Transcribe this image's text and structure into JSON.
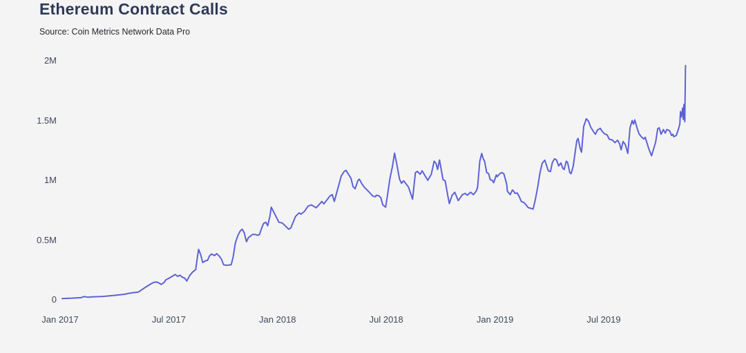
{
  "chart": {
    "title": "Ethereum Contract Calls",
    "source": "Source: Coin Metrics Network Data Pro"
  },
  "colors": {
    "background": "#f4f4f5",
    "line": "#5c61d6",
    "title_text": "#2e3a55",
    "tick_text": "#3e4859",
    "source_text": "#26282c"
  },
  "chart_data": {
    "type": "line",
    "title": "Ethereum Contract Calls",
    "subtitle": "Source: Coin Metrics Network Data Pro",
    "grid": false,
    "legend": false,
    "x_axis": {
      "unit": "decimal_year",
      "range": [
        2017.0,
        2019.9
      ],
      "ticks": [
        {
          "label": "Jan 2017",
          "t": 2017.0
        },
        {
          "label": "Jul 2017",
          "t": 2017.5
        },
        {
          "label": "Jan 2018",
          "t": 2018.0
        },
        {
          "label": "Jul 2018",
          "t": 2018.5
        },
        {
          "label": "Jan 2019",
          "t": 2019.0
        },
        {
          "label": "Jul 2019",
          "t": 2019.5
        }
      ]
    },
    "y_axis": {
      "unit": "contract calls (millions)",
      "range": [
        0,
        2
      ],
      "ticks": [
        {
          "label": "0",
          "value": 0
        },
        {
          "label": "0.5M",
          "value": 0.5
        },
        {
          "label": "1M",
          "value": 1
        },
        {
          "label": "1.5M",
          "value": 1.5
        },
        {
          "label": "2M",
          "value": 2
        }
      ]
    },
    "series": [
      {
        "name": "Ethereum contract calls",
        "unit": "millions per day",
        "points": [
          [
            2017.01,
            0.01
          ],
          [
            2017.032,
            0.012
          ],
          [
            2017.054,
            0.014
          ],
          [
            2017.073,
            0.016
          ],
          [
            2017.096,
            0.018
          ],
          [
            2017.111,
            0.027
          ],
          [
            2017.127,
            0.022
          ],
          [
            2017.146,
            0.024
          ],
          [
            2017.169,
            0.026
          ],
          [
            2017.191,
            0.028
          ],
          [
            2017.21,
            0.03
          ],
          [
            2017.232,
            0.034
          ],
          [
            2017.255,
            0.038
          ],
          [
            2017.274,
            0.042
          ],
          [
            2017.296,
            0.046
          ],
          [
            2017.318,
            0.055
          ],
          [
            2017.338,
            0.06
          ],
          [
            2017.36,
            0.065
          ],
          [
            2017.376,
            0.085
          ],
          [
            2017.392,
            0.104
          ],
          [
            2017.404,
            0.118
          ],
          [
            2017.417,
            0.133
          ],
          [
            2017.43,
            0.145
          ],
          [
            2017.443,
            0.149
          ],
          [
            2017.452,
            0.143
          ],
          [
            2017.465,
            0.129
          ],
          [
            2017.478,
            0.145
          ],
          [
            2017.487,
            0.168
          ],
          [
            2017.497,
            0.177
          ],
          [
            2017.51,
            0.19
          ],
          [
            2017.519,
            0.2
          ],
          [
            2017.529,
            0.212
          ],
          [
            2017.541,
            0.196
          ],
          [
            2017.551,
            0.206
          ],
          [
            2017.561,
            0.19
          ],
          [
            2017.573,
            0.181
          ],
          [
            2017.583,
            0.158
          ],
          [
            2017.595,
            0.2
          ],
          [
            2017.608,
            0.23
          ],
          [
            2017.624,
            0.254
          ],
          [
            2017.631,
            0.35
          ],
          [
            2017.637,
            0.422
          ],
          [
            2017.646,
            0.38
          ],
          [
            2017.656,
            0.312
          ],
          [
            2017.666,
            0.324
          ],
          [
            2017.678,
            0.33
          ],
          [
            2017.688,
            0.37
          ],
          [
            2017.697,
            0.383
          ],
          [
            2017.71,
            0.37
          ],
          [
            2017.72,
            0.386
          ],
          [
            2017.732,
            0.366
          ],
          [
            2017.742,
            0.34
          ],
          [
            2017.752,
            0.293
          ],
          [
            2017.764,
            0.289
          ],
          [
            2017.774,
            0.29
          ],
          [
            2017.787,
            0.293
          ],
          [
            2017.796,
            0.36
          ],
          [
            2017.806,
            0.476
          ],
          [
            2017.818,
            0.54
          ],
          [
            2017.828,
            0.575
          ],
          [
            2017.838,
            0.591
          ],
          [
            2017.847,
            0.56
          ],
          [
            2017.857,
            0.486
          ],
          [
            2017.866,
            0.52
          ],
          [
            2017.876,
            0.534
          ],
          [
            2017.885,
            0.547
          ],
          [
            2017.898,
            0.547
          ],
          [
            2017.908,
            0.54
          ],
          [
            2017.917,
            0.547
          ],
          [
            2017.927,
            0.6
          ],
          [
            2017.936,
            0.64
          ],
          [
            2017.946,
            0.649
          ],
          [
            2017.955,
            0.62
          ],
          [
            2017.965,
            0.7
          ],
          [
            2017.971,
            0.775
          ],
          [
            2017.981,
            0.74
          ],
          [
            2017.99,
            0.707
          ],
          [
            2018.006,
            0.649
          ],
          [
            2018.022,
            0.643
          ],
          [
            2018.051,
            0.591
          ],
          [
            2018.061,
            0.601
          ],
          [
            2018.083,
            0.698
          ],
          [
            2018.099,
            0.727
          ],
          [
            2018.108,
            0.717
          ],
          [
            2018.124,
            0.74
          ],
          [
            2018.14,
            0.784
          ],
          [
            2018.156,
            0.794
          ],
          [
            2018.178,
            0.77
          ],
          [
            2018.204,
            0.823
          ],
          [
            2018.213,
            0.803
          ],
          [
            2018.242,
            0.871
          ],
          [
            2018.252,
            0.88
          ],
          [
            2018.261,
            0.823
          ],
          [
            2018.277,
            0.929
          ],
          [
            2018.293,
            1.035
          ],
          [
            2018.306,
            1.073
          ],
          [
            2018.315,
            1.083
          ],
          [
            2018.325,
            1.054
          ],
          [
            2018.338,
            1.016
          ],
          [
            2018.347,
            0.948
          ],
          [
            2018.357,
            0.929
          ],
          [
            2018.369,
            0.996
          ],
          [
            2018.376,
            1.01
          ],
          [
            2018.389,
            0.967
          ],
          [
            2018.401,
            0.938
          ],
          [
            2018.417,
            0.909
          ],
          [
            2018.427,
            0.89
          ],
          [
            2018.436,
            0.871
          ],
          [
            2018.449,
            0.861
          ],
          [
            2018.455,
            0.875
          ],
          [
            2018.465,
            0.871
          ],
          [
            2018.475,
            0.855
          ],
          [
            2018.484,
            0.794
          ],
          [
            2018.497,
            0.775
          ],
          [
            2018.506,
            0.88
          ],
          [
            2018.516,
            1.006
          ],
          [
            2018.529,
            1.121
          ],
          [
            2018.538,
            1.227
          ],
          [
            2018.548,
            1.14
          ],
          [
            2018.561,
            1.01
          ],
          [
            2018.57,
            0.975
          ],
          [
            2018.58,
            0.996
          ],
          [
            2018.602,
            0.944
          ],
          [
            2018.621,
            0.842
          ],
          [
            2018.634,
            1.064
          ],
          [
            2018.643,
            1.075
          ],
          [
            2018.656,
            1.05
          ],
          [
            2018.665,
            1.08
          ],
          [
            2018.681,
            1.03
          ],
          [
            2018.691,
            1.0
          ],
          [
            2018.707,
            1.05
          ],
          [
            2018.72,
            1.16
          ],
          [
            2018.729,
            1.14
          ],
          [
            2018.736,
            1.09
          ],
          [
            2018.745,
            1.17
          ],
          [
            2018.761,
            1.005
          ],
          [
            2018.771,
            0.995
          ],
          [
            2018.783,
            0.87
          ],
          [
            2018.79,
            0.805
          ],
          [
            2018.803,
            0.875
          ],
          [
            2018.815,
            0.9
          ],
          [
            2018.831,
            0.83
          ],
          [
            2018.85,
            0.88
          ],
          [
            2018.863,
            0.89
          ],
          [
            2018.873,
            0.875
          ],
          [
            2018.888,
            0.9
          ],
          [
            2018.901,
            0.88
          ],
          [
            2018.914,
            0.91
          ],
          [
            2018.92,
            0.94
          ],
          [
            2018.93,
            1.16
          ],
          [
            2018.939,
            1.225
          ],
          [
            2018.946,
            1.18
          ],
          [
            2018.952,
            1.16
          ],
          [
            2018.962,
            1.065
          ],
          [
            2018.971,
            1.055
          ],
          [
            2018.978,
            1.005
          ],
          [
            2018.987,
            1.0
          ],
          [
            2018.994,
            0.98
          ],
          [
            2019.006,
            1.045
          ],
          [
            2019.01,
            1.03
          ],
          [
            2019.022,
            1.055
          ],
          [
            2019.032,
            1.065
          ],
          [
            2019.041,
            1.054
          ],
          [
            2019.054,
            0.967
          ],
          [
            2019.057,
            0.909
          ],
          [
            2019.07,
            0.88
          ],
          [
            2019.08,
            0.919
          ],
          [
            2019.086,
            0.909
          ],
          [
            2019.092,
            0.89
          ],
          [
            2019.102,
            0.894
          ],
          [
            2019.112,
            0.861
          ],
          [
            2019.121,
            0.823
          ],
          [
            2019.134,
            0.813
          ],
          [
            2019.143,
            0.794
          ],
          [
            2019.153,
            0.771
          ],
          [
            2019.166,
            0.765
          ],
          [
            2019.175,
            0.759
          ],
          [
            2019.185,
            0.832
          ],
          [
            2019.197,
            0.948
          ],
          [
            2019.207,
            1.064
          ],
          [
            2019.217,
            1.141
          ],
          [
            2019.229,
            1.169
          ],
          [
            2019.236,
            1.131
          ],
          [
            2019.245,
            1.08
          ],
          [
            2019.255,
            1.073
          ],
          [
            2019.264,
            1.15
          ],
          [
            2019.274,
            1.18
          ],
          [
            2019.283,
            1.17
          ],
          [
            2019.293,
            1.12
          ],
          [
            2019.303,
            1.145
          ],
          [
            2019.312,
            1.1
          ],
          [
            2019.318,
            1.09
          ],
          [
            2019.328,
            1.16
          ],
          [
            2019.334,
            1.15
          ],
          [
            2019.344,
            1.065
          ],
          [
            2019.35,
            1.055
          ],
          [
            2019.36,
            1.12
          ],
          [
            2019.376,
            1.33
          ],
          [
            2019.382,
            1.35
          ],
          [
            2019.392,
            1.265
          ],
          [
            2019.398,
            1.235
          ],
          [
            2019.408,
            1.45
          ],
          [
            2019.42,
            1.515
          ],
          [
            2019.43,
            1.495
          ],
          [
            2019.439,
            1.45
          ],
          [
            2019.452,
            1.41
          ],
          [
            2019.462,
            1.385
          ],
          [
            2019.471,
            1.42
          ],
          [
            2019.484,
            1.435
          ],
          [
            2019.493,
            1.41
          ],
          [
            2019.503,
            1.39
          ],
          [
            2019.516,
            1.38
          ],
          [
            2019.525,
            1.345
          ],
          [
            2019.541,
            1.335
          ],
          [
            2019.551,
            1.315
          ],
          [
            2019.564,
            1.335
          ],
          [
            2019.573,
            1.305
          ],
          [
            2019.58,
            1.255
          ],
          [
            2019.589,
            1.325
          ],
          [
            2019.599,
            1.3
          ],
          [
            2019.611,
            1.225
          ],
          [
            2019.621,
            1.44
          ],
          [
            2019.631,
            1.5
          ],
          [
            2019.637,
            1.47
          ],
          [
            2019.643,
            1.505
          ],
          [
            2019.653,
            1.44
          ],
          [
            2019.662,
            1.39
          ],
          [
            2019.675,
            1.36
          ],
          [
            2019.685,
            1.345
          ],
          [
            2019.691,
            1.36
          ],
          [
            2019.707,
            1.265
          ],
          [
            2019.72,
            1.205
          ],
          [
            2019.739,
            1.32
          ],
          [
            2019.748,
            1.43
          ],
          [
            2019.755,
            1.44
          ],
          [
            2019.764,
            1.385
          ],
          [
            2019.774,
            1.425
          ],
          [
            2019.783,
            1.395
          ],
          [
            2019.79,
            1.425
          ],
          [
            2019.803,
            1.415
          ],
          [
            2019.812,
            1.375
          ],
          [
            2019.818,
            1.385
          ],
          [
            2019.822,
            1.365
          ],
          [
            2019.834,
            1.375
          ],
          [
            2019.844,
            1.43
          ],
          [
            2019.85,
            1.47
          ],
          [
            2019.853,
            1.575
          ],
          [
            2019.857,
            1.53
          ],
          [
            2019.863,
            1.605
          ],
          [
            2019.866,
            1.51
          ],
          [
            2019.869,
            1.635
          ],
          [
            2019.873,
            1.49
          ],
          [
            2019.876,
            1.96
          ]
        ]
      }
    ]
  }
}
